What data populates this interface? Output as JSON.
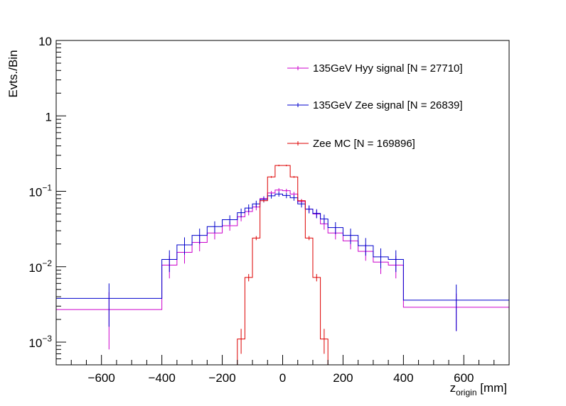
{
  "chart_data": {
    "type": "line",
    "xlabel": {
      "main": "z",
      "sub": "origin",
      "unit": " [mm]"
    },
    "ylabel": "Evts./Bin",
    "xlim": [
      -750,
      750
    ],
    "ylim": [
      0.0005,
      10
    ],
    "y_scale": "log",
    "x_ticks": [
      -600,
      -400,
      -200,
      0,
      200,
      400,
      600
    ],
    "x_tick_labels": [
      "−600",
      "−400",
      "−200",
      "0",
      "200",
      "400",
      "600"
    ],
    "y_ticks": [
      0.001,
      0.01,
      0.1,
      1,
      10
    ],
    "y_tick_labels": [
      {
        "base": "10",
        "exp": "−3"
      },
      {
        "base": "10",
        "exp": "−2"
      },
      {
        "base": "10",
        "exp": "−1"
      },
      {
        "base": "1",
        "exp": ""
      },
      {
        "base": "10",
        "exp": ""
      }
    ],
    "grid": false,
    "legend_position": "top-right",
    "series": [
      {
        "name": "135GeV Hyy signal [N = 27710]",
        "color": "#cc00cc",
        "edges": [
          -750,
          -400,
          -350,
          -300,
          -250,
          -200,
          -150,
          -125,
          -100,
          -75,
          -50,
          -25,
          0,
          25,
          50,
          75,
          100,
          125,
          150,
          200,
          250,
          300,
          350,
          400,
          750
        ],
        "values": [
          0.0027,
          0.0105,
          0.0155,
          0.021,
          0.028,
          0.035,
          0.046,
          0.054,
          0.062,
          0.08,
          0.095,
          0.104,
          0.102,
          0.092,
          0.073,
          0.058,
          0.05,
          0.037,
          0.028,
          0.022,
          0.016,
          0.0115,
          0.0105,
          0.0029
        ],
        "errors": [
          0.0019,
          0.0035,
          0.0045,
          0.005,
          0.005,
          0.005,
          0.006,
          0.006,
          0.006,
          0.006,
          0.006,
          0.006,
          0.006,
          0.006,
          0.006,
          0.006,
          0.006,
          0.006,
          0.005,
          0.005,
          0.004,
          0.0035,
          0.0035,
          0.0015
        ]
      },
      {
        "name": "135GeV Zee signal [N = 26839]",
        "color": "#0000cc",
        "edges": [
          -750,
          -400,
          -350,
          -300,
          -250,
          -200,
          -150,
          -125,
          -100,
          -75,
          -50,
          -25,
          0,
          25,
          50,
          75,
          100,
          125,
          150,
          200,
          250,
          300,
          350,
          400,
          750
        ],
        "values": [
          0.0038,
          0.0125,
          0.0195,
          0.026,
          0.034,
          0.042,
          0.052,
          0.06,
          0.068,
          0.078,
          0.087,
          0.092,
          0.088,
          0.082,
          0.068,
          0.058,
          0.051,
          0.043,
          0.033,
          0.026,
          0.019,
          0.0135,
          0.0125,
          0.0036
        ],
        "errors": [
          0.0022,
          0.004,
          0.005,
          0.006,
          0.006,
          0.006,
          0.007,
          0.007,
          0.007,
          0.007,
          0.007,
          0.007,
          0.007,
          0.007,
          0.007,
          0.007,
          0.007,
          0.006,
          0.006,
          0.006,
          0.005,
          0.004,
          0.004,
          0.0022
        ]
      },
      {
        "name": "Zee MC [N = 169896]",
        "color": "#dd0000",
        "edges": [
          -750,
          -150,
          -125,
          -100,
          -75,
          -50,
          -25,
          0,
          25,
          50,
          75,
          100,
          125,
          150,
          750
        ],
        "values": [
          0.0001,
          0.0011,
          0.0072,
          0.024,
          0.075,
          0.155,
          0.22,
          0.22,
          0.155,
          0.075,
          0.024,
          0.0072,
          0.0011,
          0.0001
        ],
        "errors": [
          0,
          0.0004,
          0.0008,
          0.0015,
          0.003,
          0.004,
          0.005,
          0.005,
          0.004,
          0.003,
          0.0015,
          0.0008,
          0.0004,
          0
        ]
      }
    ]
  }
}
